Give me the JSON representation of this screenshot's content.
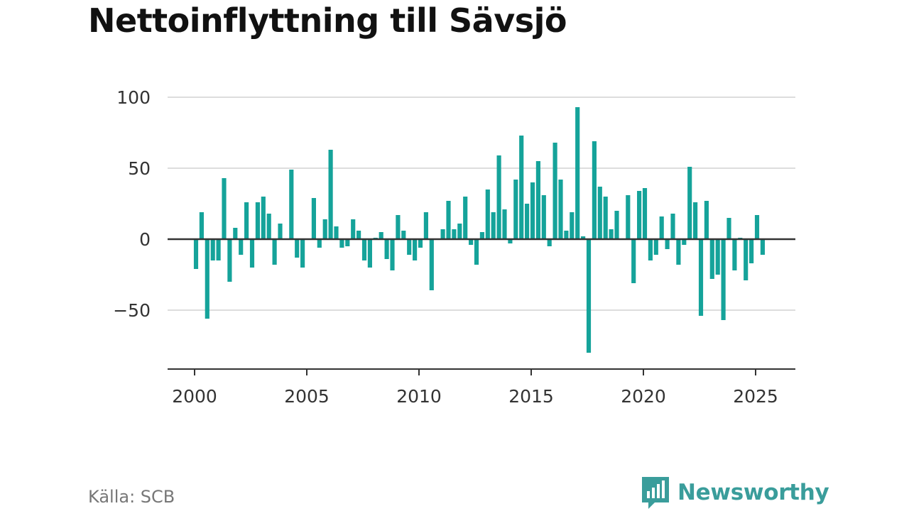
{
  "title": "Nettoinflyttning till Sävsjö",
  "source": "Källa: SCB",
  "brand": {
    "name": "Newsworthy",
    "icon": "newsworthy-logo-icon",
    "color": "#3a9d9b"
  },
  "chart_data": {
    "type": "bar",
    "title": "Nettoinflyttning till Sävsjö",
    "xlabel": "",
    "ylabel": "",
    "frequency": "quarterly",
    "x_start": 2000,
    "xlim": [
      1998.8,
      2026.8
    ],
    "ylim": [
      -92,
      100
    ],
    "yticks": [
      -50,
      0,
      50,
      100
    ],
    "ytick_labels": [
      "−50",
      "0",
      "50",
      "100"
    ],
    "xticks": [
      2000,
      2005,
      2010,
      2015,
      2020,
      2025
    ],
    "xtick_labels": [
      "2000",
      "2005",
      "2010",
      "2015",
      "2020",
      "2025"
    ],
    "grid": true,
    "bar_color": "#15a39a",
    "values": [
      -21,
      19,
      -56,
      -15,
      -15,
      43,
      -30,
      8,
      -11,
      26,
      -20,
      26,
      30,
      18,
      -18,
      11,
      0,
      49,
      -13,
      -20,
      0,
      29,
      -6,
      14,
      63,
      9,
      -6,
      -5,
      14,
      6,
      -15,
      -20,
      1,
      5,
      -14,
      -22,
      17,
      6,
      -11,
      -15,
      -6,
      19,
      -36,
      0,
      7,
      27,
      7,
      11,
      30,
      -4,
      -18,
      5,
      35,
      19,
      59,
      21,
      -3,
      42,
      73,
      25,
      40,
      55,
      31,
      -5,
      68,
      42,
      6,
      19,
      93,
      2,
      -80,
      69,
      37,
      30,
      7,
      20,
      0,
      31,
      -31,
      34,
      36,
      -15,
      -11,
      16,
      -7,
      18,
      -18,
      -4,
      51,
      26,
      -54,
      27,
      -28,
      -25,
      -57,
      15,
      -22,
      1,
      -29,
      -17,
      17,
      -11
    ]
  }
}
